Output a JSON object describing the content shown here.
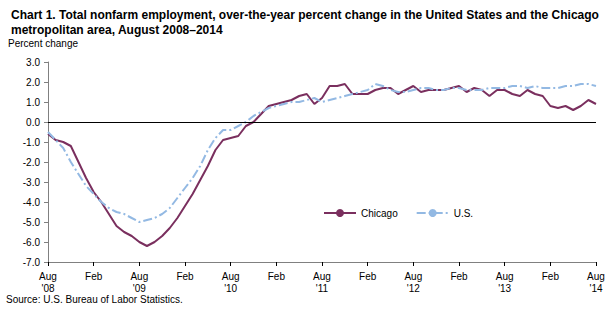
{
  "chart_data": {
    "type": "line",
    "title": "Chart 1. Total nonfarm employment, over-the-year percent change in the United States and the Chicago metropolitan area, August 2008–2014",
    "ylabel": "Percent change",
    "annotations": [
      "Source: U.S. Bureau of Labor Statistics."
    ],
    "categories": [
      "Aug\n'08",
      null,
      null,
      null,
      null,
      null,
      "Feb",
      null,
      null,
      null,
      null,
      null,
      "Aug\n'09",
      null,
      null,
      null,
      null,
      null,
      "Feb",
      null,
      null,
      null,
      null,
      null,
      "Aug\n'10",
      null,
      null,
      null,
      null,
      null,
      "Feb",
      null,
      null,
      null,
      null,
      null,
      "Aug\n'11",
      null,
      null,
      null,
      null,
      null,
      "Feb",
      null,
      null,
      null,
      null,
      null,
      "Aug\n'12",
      null,
      null,
      null,
      null,
      null,
      "Feb",
      null,
      null,
      null,
      null,
      null,
      "Aug\n'13",
      null,
      null,
      null,
      null,
      null,
      "Feb",
      null,
      null,
      null,
      null,
      null,
      "Aug\n'14"
    ],
    "series": [
      {
        "name": "Chicago",
        "color": "#7a2f5e",
        "line_style": "solid",
        "values": [
          -0.6,
          -0.9,
          -1.0,
          -1.2,
          -2.0,
          -2.8,
          -3.5,
          -4.0,
          -4.6,
          -5.2,
          -5.5,
          -5.7,
          -6.0,
          -6.2,
          -6.0,
          -5.7,
          -5.3,
          -4.8,
          -4.2,
          -3.6,
          -2.9,
          -2.2,
          -1.4,
          -0.9,
          -0.8,
          -0.7,
          -0.2,
          0.0,
          0.4,
          0.8,
          0.9,
          1.0,
          1.1,
          1.3,
          1.4,
          0.9,
          1.2,
          1.8,
          1.8,
          1.9,
          1.4,
          1.4,
          1.4,
          1.6,
          1.7,
          1.7,
          1.4,
          1.6,
          1.8,
          1.5,
          1.6,
          1.6,
          1.6,
          1.7,
          1.8,
          1.5,
          1.7,
          1.6,
          1.3,
          1.6,
          1.6,
          1.4,
          1.3,
          1.6,
          1.4,
          1.3,
          0.8,
          0.7,
          0.8,
          0.6,
          0.8,
          1.1,
          0.9
        ]
      },
      {
        "name": "U.S.",
        "color": "#93b9e3",
        "line_style": "dashdot",
        "values": [
          -0.5,
          -0.9,
          -1.3,
          -2.0,
          -2.6,
          -3.2,
          -3.6,
          -4.0,
          -4.3,
          -4.5,
          -4.6,
          -4.8,
          -5.0,
          -4.9,
          -4.8,
          -4.6,
          -4.3,
          -3.8,
          -3.3,
          -2.8,
          -2.2,
          -1.4,
          -0.8,
          -0.4,
          -0.4,
          -0.2,
          0.0,
          0.3,
          0.5,
          0.7,
          0.8,
          0.9,
          1.0,
          1.0,
          1.1,
          1.2,
          1.0,
          1.1,
          1.2,
          1.3,
          1.4,
          1.5,
          1.6,
          1.9,
          1.8,
          1.6,
          1.5,
          1.5,
          1.6,
          1.7,
          1.7,
          1.6,
          1.6,
          1.7,
          1.7,
          1.6,
          1.6,
          1.6,
          1.7,
          1.7,
          1.7,
          1.8,
          1.8,
          1.7,
          1.8,
          1.7,
          1.7,
          1.7,
          1.8,
          1.8,
          1.9,
          1.9,
          1.8
        ]
      }
    ],
    "ylim": [
      -7,
      3
    ],
    "yticks": [
      {
        "value": -7,
        "label": "-7.0"
      },
      {
        "value": -6,
        "label": "-6.0"
      },
      {
        "value": -5,
        "label": "-5.0"
      },
      {
        "value": -4,
        "label": "-4.0"
      },
      {
        "value": -3,
        "label": "-3.0"
      },
      {
        "value": -2,
        "label": "-2.0"
      },
      {
        "value": -1,
        "label": "-1.0"
      },
      {
        "value": 0,
        "label": "0.0"
      },
      {
        "value": 1,
        "label": "1.0"
      },
      {
        "value": 2,
        "label": "2.0"
      },
      {
        "value": 3,
        "label": "3.0"
      }
    ],
    "grid": false,
    "legend": "lower center"
  }
}
